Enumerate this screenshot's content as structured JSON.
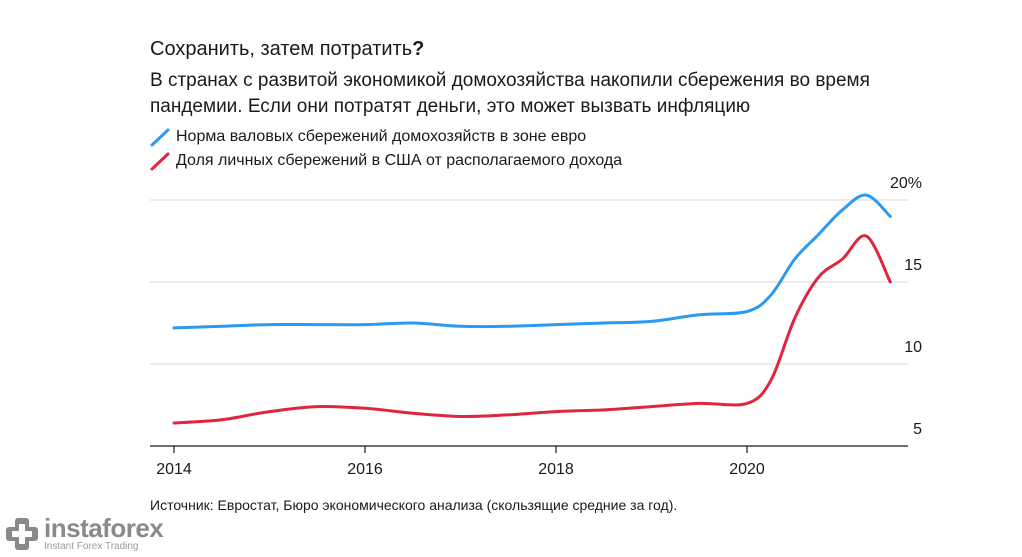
{
  "header": {
    "title": "Сохранить, затем потратить",
    "title_mark": "?",
    "title_separator": ",",
    "subtitle": "В странах с развитой экономикой домохозяйства накопили сбережения во время пандемии. Если они потратят деньги, это может вызвать инфляцию"
  },
  "legend": [
    {
      "label": "Норма валовых сбережений домохозяйств в зоне евро",
      "color": "#2b9af0"
    },
    {
      "label": "Доля личных сбережений в США от располагаемого дохода",
      "color": "#e0263e"
    }
  ],
  "source": "Источник: Евростат, Бюро экономического анализа (скользящие средние за год).",
  "logo": {
    "name": "instaforex",
    "tagline": "Instant Forex Trading"
  },
  "chart_data": {
    "type": "line",
    "ylim": [
      5,
      20
    ],
    "xlim": [
      2014,
      2021.7
    ],
    "y_ticks": [
      {
        "value": 20,
        "label": "20%"
      },
      {
        "value": 15,
        "label": "15"
      },
      {
        "value": 10,
        "label": "10"
      },
      {
        "value": 5,
        "label": "5"
      }
    ],
    "x_ticks": [
      {
        "value": 2014,
        "label": "2014"
      },
      {
        "value": 2016,
        "label": "2016"
      },
      {
        "value": 2018,
        "label": "2018"
      },
      {
        "value": 2020,
        "label": "2020"
      }
    ],
    "grid": true,
    "series": [
      {
        "name": "Норма валовых сбережений домохозяйств в зоне евро",
        "color": "#2b9af0",
        "x": [
          2014,
          2014.5,
          2015,
          2015.5,
          2016,
          2016.5,
          2017,
          2017.5,
          2018,
          2018.5,
          2019,
          2019.5,
          2020,
          2020.25,
          2020.5,
          2020.75,
          2021,
          2021.25,
          2021.5
        ],
        "y": [
          12.2,
          12.3,
          12.4,
          12.4,
          12.4,
          12.5,
          12.3,
          12.3,
          12.4,
          12.5,
          12.6,
          13.0,
          13.2,
          14.2,
          16.4,
          17.9,
          19.4,
          20.3,
          19.0
        ]
      },
      {
        "name": "Доля личных сбережений в США от располагаемого дохода",
        "color": "#e0263e",
        "x": [
          2014,
          2014.5,
          2015,
          2015.5,
          2016,
          2016.5,
          2017,
          2017.5,
          2018,
          2018.5,
          2019,
          2019.5,
          2020,
          2020.25,
          2020.5,
          2020.75,
          2021,
          2021.25,
          2021.5
        ],
        "y": [
          6.4,
          6.6,
          7.1,
          7.4,
          7.3,
          7.0,
          6.8,
          6.9,
          7.1,
          7.2,
          7.4,
          7.6,
          7.6,
          9.0,
          12.8,
          15.3,
          16.4,
          17.8,
          15.0
        ]
      }
    ]
  }
}
